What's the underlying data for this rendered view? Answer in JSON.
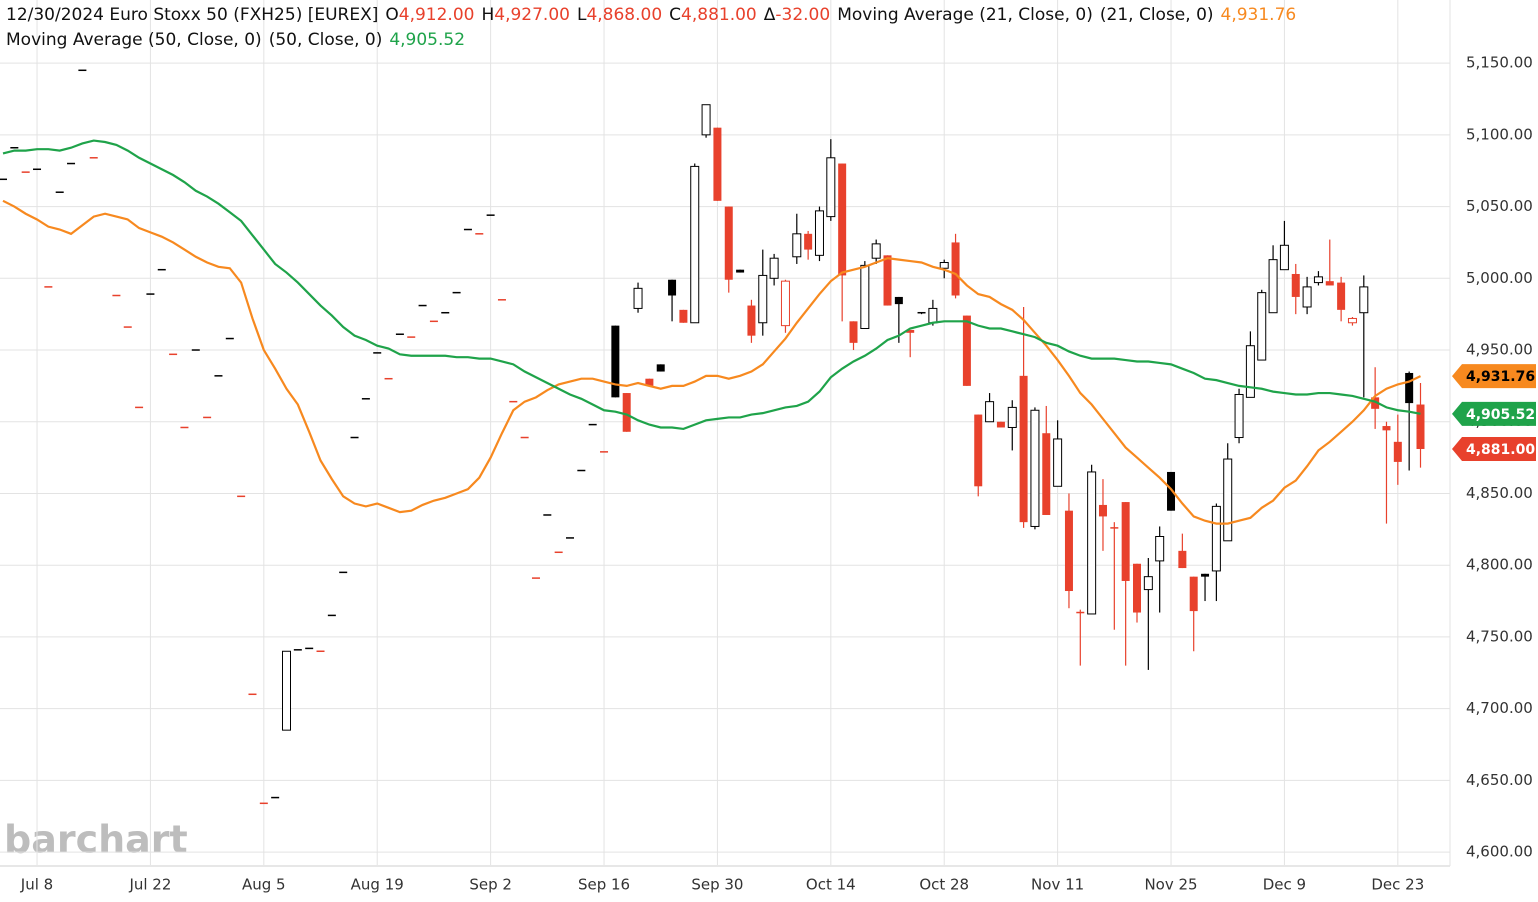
{
  "header": {
    "symbol": "12/30/2024 Euro Stoxx 50 (FXH25) [EUREX]",
    "ohlc": [
      {
        "key": "O",
        "value": "4,912.00"
      },
      {
        "key": "H",
        "value": "4,927.00"
      },
      {
        "key": "L",
        "value": "4,868.00"
      },
      {
        "key": "C",
        "value": "4,881.00"
      },
      {
        "key": "Δ",
        "value": "-32.00"
      }
    ]
  },
  "watermark": "barchart",
  "chart_data": {
    "type": "candlestick",
    "up_color": "#000000",
    "down_color": "#e8412c",
    "grid": true,
    "close_label": "4,881.00",
    "categories": [
      null,
      null,
      null,
      "Jul 8",
      null,
      null,
      null,
      null,
      null,
      null,
      null,
      null,
      null,
      "Jul 22",
      null,
      null,
      null,
      null,
      null,
      null,
      null,
      null,
      null,
      "Aug 5",
      null,
      null,
      null,
      null,
      null,
      null,
      null,
      null,
      null,
      "Aug 19",
      null,
      null,
      null,
      null,
      null,
      null,
      null,
      null,
      null,
      "Sep 2",
      null,
      null,
      null,
      null,
      null,
      null,
      null,
      null,
      null,
      "Sep 16",
      null,
      null,
      null,
      null,
      null,
      null,
      null,
      null,
      null,
      "Sep 30",
      null,
      null,
      null,
      null,
      null,
      null,
      null,
      null,
      null,
      "Oct 14",
      null,
      null,
      null,
      null,
      null,
      null,
      null,
      null,
      null,
      "Oct 28",
      null,
      null,
      null,
      null,
      null,
      null,
      null,
      null,
      null,
      "Nov 11",
      null,
      null,
      null,
      null,
      null,
      null,
      null,
      null,
      null,
      "Nov 25",
      null,
      null,
      null,
      null,
      null,
      null,
      null,
      null,
      null,
      "Dec 9",
      null,
      null,
      null,
      null,
      null,
      null,
      null,
      null,
      null,
      "Dec 23",
      null,
      null
    ],
    "open": [
      5069,
      5091,
      5074,
      5076,
      4994,
      5060,
      5080,
      5145,
      5084,
      null,
      4988,
      4966,
      4910,
      4989,
      5006,
      4947,
      4896,
      4950,
      4903,
      4932,
      4958,
      4848,
      4710,
      4634,
      4638,
      4685,
      4741,
      4742,
      4740,
      4765,
      4795,
      4889,
      4916,
      4948,
      4930,
      4961,
      4959,
      4981,
      4970,
      4976,
      4990,
      5034,
      5031,
      5044,
      4985,
      4914,
      4889,
      4791,
      4835,
      4809,
      4819,
      4866,
      4898,
      4879,
      4967,
      4920,
      4979,
      4930,
      4940,
      4999,
      4978,
      4969,
      5100,
      5105,
      5050,
      5006,
      4981,
      4969,
      5000,
      4967,
      5015,
      5031,
      5016,
      5043,
      5080,
      4970,
      4965,
      5014,
      5016,
      4987,
      4964,
      4976,
      4969,
      5007,
      5025,
      4974,
      4905,
      4900,
      4900,
      4896,
      4932,
      4827,
      4892,
      4855,
      4838,
      4767,
      4766,
      4842,
      4826,
      4844,
      4801,
      4783,
      4803,
      4865,
      4810,
      4792,
      4794,
      4796,
      4817,
      4889,
      4917,
      4943,
      4976,
      5006,
      5003,
      4980,
      4997,
      4998,
      4997,
      4969,
      4976,
      4917,
      4897,
      4886,
      4934,
      4912
    ],
    "high": [
      5069,
      5091,
      5074,
      5076,
      4994,
      5060,
      5080,
      5145,
      5084,
      null,
      4988,
      4966,
      4910,
      4989,
      5006,
      4947,
      4896,
      4950,
      4903,
      4932,
      4958,
      4848,
      4710,
      4634,
      4638,
      4740,
      4741,
      4742,
      4740,
      4765,
      4795,
      4889,
      4916,
      4948,
      4930,
      4961,
      4959,
      4981,
      4970,
      4976,
      4990,
      5034,
      5031,
      5044,
      4985,
      4914,
      4889,
      4791,
      4835,
      4809,
      4819,
      4866,
      4898,
      4879,
      4967,
      4920,
      4997,
      4930,
      4940,
      4999,
      4978,
      5080,
      5121,
      5105,
      5050,
      5006,
      4985,
      5020,
      5017,
      4999,
      5045,
      5033,
      5050,
      5097,
      5080,
      4970,
      5012,
      5027,
      5016,
      4987,
      4964,
      4976,
      4985,
      5013,
      5031,
      4974,
      4905,
      4920,
      4900,
      4915,
      4980,
      4910,
      4911,
      4901,
      4850,
      4769,
      4870,
      4860,
      4830,
      4844,
      4801,
      4805,
      4827,
      4865,
      4822,
      4792,
      4794,
      4843,
      4885,
      4923,
      4963,
      4992,
      5023,
      5040,
      5010,
      5001,
      5005,
      5027,
      5001,
      4973,
      5002,
      4938,
      4900,
      4905,
      4935,
      4927
    ],
    "low": [
      5069,
      5091,
      5074,
      5076,
      4994,
      5060,
      5080,
      5145,
      5084,
      null,
      4988,
      4966,
      4910,
      4989,
      5006,
      4947,
      4896,
      4950,
      4903,
      4932,
      4958,
      4848,
      4710,
      4634,
      4638,
      4685,
      4741,
      4742,
      4740,
      4765,
      4795,
      4889,
      4916,
      4948,
      4930,
      4961,
      4959,
      4981,
      4970,
      4976,
      4990,
      5034,
      5031,
      5044,
      4985,
      4914,
      4889,
      4791,
      4835,
      4809,
      4819,
      4866,
      4898,
      4879,
      4917,
      4893,
      4976,
      4925,
      4935,
      4970,
      4969,
      4969,
      5098,
      5054,
      4990,
      5004,
      4955,
      4960,
      4995,
      4962,
      5010,
      5013,
      5012,
      5040,
      4970,
      4950,
      4965,
      5010,
      4981,
      4955,
      4945,
      4975,
      4967,
      5000,
      4986,
      4925,
      4848,
      4900,
      4896,
      4880,
      4826,
      4825,
      4835,
      4855,
      4770,
      4730,
      4766,
      4810,
      4755,
      4730,
      4760,
      4727,
      4767,
      4838,
      4798,
      4740,
      4775,
      4775,
      4817,
      4885,
      4917,
      4943,
      4976,
      5006,
      4975,
      4975,
      4995,
      4995,
      4970,
      4967,
      4917,
      4895,
      4829,
      4856,
      4866,
      4868
    ],
    "close": [
      5069,
      5091,
      5074,
      5076,
      4994,
      5060,
      5080,
      5145,
      5084,
      null,
      4988,
      4966,
      4910,
      4989,
      5006,
      4947,
      4896,
      4950,
      4903,
      4932,
      4958,
      4848,
      4710,
      4634,
      4638,
      4740,
      4741,
      4742,
      4740,
      4765,
      4795,
      4889,
      4916,
      4948,
      4930,
      4961,
      4959,
      4981,
      4970,
      4976,
      4990,
      5034,
      5031,
      5044,
      4985,
      4914,
      4889,
      4791,
      4835,
      4809,
      4819,
      4866,
      4898,
      4879,
      4917,
      4893,
      4993,
      4925,
      4935,
      4988,
      4969,
      5078,
      5121,
      5054,
      4999,
      5004,
      4960,
      5002,
      5014,
      4998,
      5031,
      5020,
      5047,
      5084,
      5002,
      4955,
      5009,
      5024,
      4981,
      4982,
      4962,
      4975,
      4979,
      5011,
      4988,
      4925,
      4855,
      4914,
      4896,
      4910,
      4830,
      4908,
      4835,
      4888,
      4782,
      4766,
      4865,
      4834,
      4825,
      4789,
      4767,
      4792,
      4820,
      4838,
      4798,
      4768,
      4792,
      4841,
      4874,
      4919,
      4953,
      4990,
      5013,
      5023,
      4987,
      4994,
      5001,
      4995,
      4978,
      4972,
      4994,
      4909,
      4894,
      4872,
      4913,
      4881
    ],
    "overlays": [
      {
        "name": "Moving Average (21, Close, 0)",
        "params": "(21, Close, 0)",
        "color": "#f7891f",
        "last_label": "4,931.76",
        "values": [
          5054,
          5050,
          5045,
          5041,
          5036,
          5034,
          5031,
          5037,
          5043,
          5045,
          5043,
          5041,
          5035,
          5032,
          5029,
          5025,
          5020,
          5015,
          5011,
          5008,
          5007,
          4997,
          4972,
          4950,
          4937,
          4923,
          4912,
          4893,
          4873,
          4860,
          4848,
          4843,
          4841,
          4843,
          4840,
          4837,
          4838,
          4842,
          4845,
          4847,
          4850,
          4853,
          4861,
          4875,
          4892,
          4908,
          4914,
          4917,
          4922,
          4926,
          4928,
          4930,
          4930,
          4928,
          4926,
          4925,
          4927,
          4925,
          4923,
          4925,
          4925,
          4928,
          4932,
          4932,
          4930,
          4932,
          4935,
          4940,
          4949,
          4958,
          4969,
          4979,
          4989,
          4998,
          5004,
          5006,
          5008,
          5011,
          5014,
          5013,
          5012,
          5011,
          5008,
          5006,
          5003,
          4995,
          4989,
          4987,
          4982,
          4978,
          4971,
          4962,
          4953,
          4943,
          4932,
          4920,
          4912,
          4902,
          4892,
          4882,
          4875,
          4868,
          4861,
          4853,
          4843,
          4834,
          4831,
          4829,
          4829,
          4831,
          4833,
          4840,
          4845,
          4854,
          4859,
          4869,
          4880,
          4886,
          4893,
          4900,
          4908,
          4918,
          4923,
          4926,
          4928,
          4931.76
        ]
      },
      {
        "name": "Moving Average (50, Close, 0)",
        "params": "(50, Close, 0)",
        "color": "#1fa34a",
        "last_label": "4,905.52",
        "values": [
          5087,
          5089,
          5089,
          5090,
          5090,
          5089,
          5091,
          5094,
          5096,
          5095,
          5093,
          5089,
          5084,
          5080,
          5076,
          5072,
          5067,
          5061,
          5057,
          5052,
          5046,
          5040,
          5030,
          5020,
          5010,
          5004,
          4997,
          4989,
          4981,
          4974,
          4966,
          4960,
          4957,
          4953,
          4951,
          4947,
          4946,
          4946,
          4946,
          4946,
          4945,
          4945,
          4944,
          4944,
          4942,
          4940,
          4935,
          4931,
          4927,
          4923,
          4919,
          4916,
          4912,
          4908,
          4907,
          4905,
          4901,
          4898,
          4896,
          4896,
          4895,
          4898,
          4901,
          4902,
          4903,
          4903,
          4905,
          4906,
          4908,
          4910,
          4911,
          4914,
          4921,
          4931,
          4937,
          4942,
          4946,
          4951,
          4957,
          4960,
          4965,
          4967,
          4969,
          4970,
          4970,
          4970,
          4967,
          4965,
          4965,
          4963,
          4961,
          4959,
          4955,
          4953,
          4949,
          4946,
          4944,
          4944,
          4944,
          4943,
          4942,
          4942,
          4941,
          4940,
          4937,
          4934,
          4930,
          4929,
          4927,
          4925,
          4924,
          4923,
          4921,
          4920,
          4919,
          4919,
          4920,
          4920,
          4919,
          4918,
          4916,
          4914,
          4910,
          4908,
          4907,
          4905.52
        ]
      }
    ],
    "ylim": [
      4591,
      5194
    ],
    "yticks": [
      {
        "value": 4600,
        "label": "4,600.00"
      },
      {
        "value": 4650,
        "label": "4,650.00"
      },
      {
        "value": 4700,
        "label": "4,700.00"
      },
      {
        "value": 4750,
        "label": "4,750.00"
      },
      {
        "value": 4800,
        "label": "4,800.00"
      },
      {
        "value": 4850,
        "label": "4,850.00"
      },
      {
        "value": 4900,
        "label": "4,900.00"
      },
      {
        "value": 4950,
        "label": "4,950.00"
      },
      {
        "value": 5000,
        "label": "5,000.00"
      },
      {
        "value": 5050,
        "label": "5,050.00"
      },
      {
        "value": 5100,
        "label": "5,100.00"
      },
      {
        "value": 5150,
        "label": "5,150.00"
      }
    ]
  }
}
